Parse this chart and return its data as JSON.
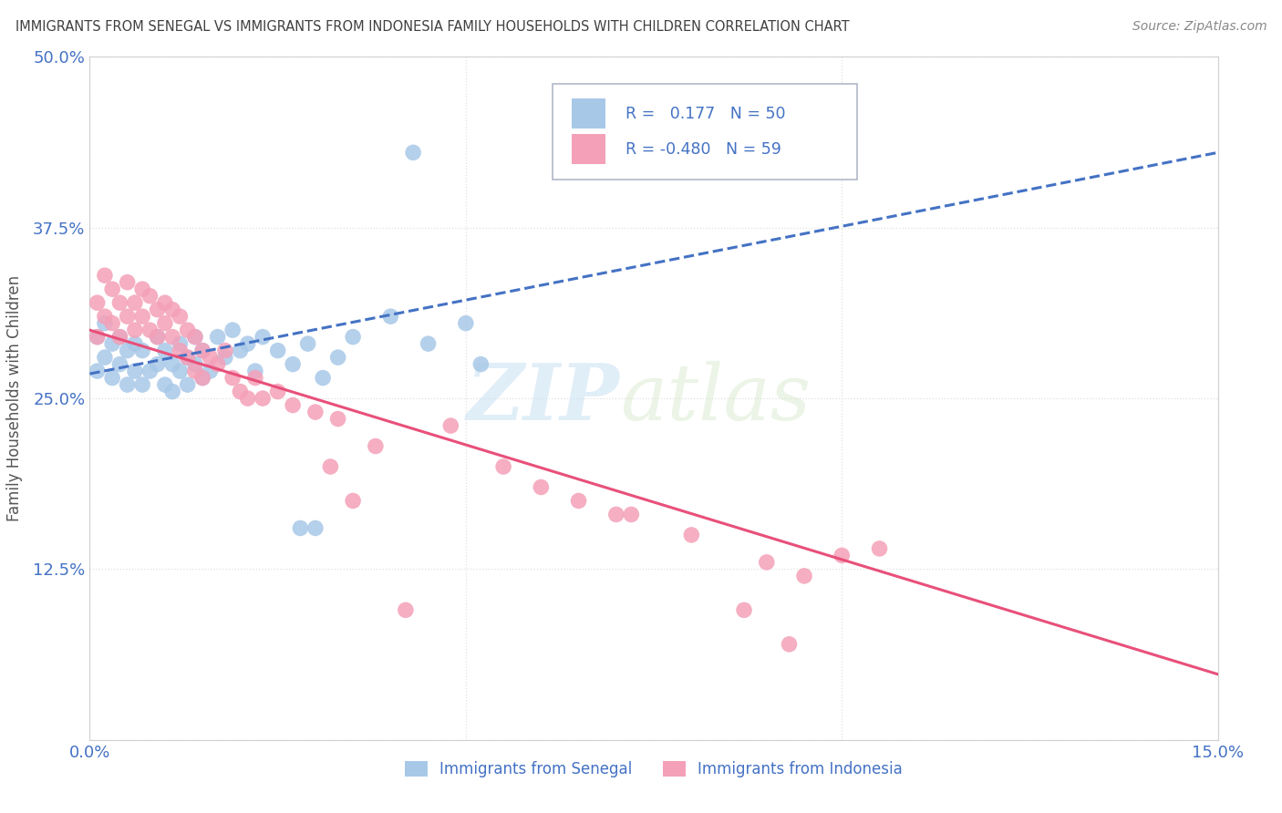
{
  "title": "IMMIGRANTS FROM SENEGAL VS IMMIGRANTS FROM INDONESIA FAMILY HOUSEHOLDS WITH CHILDREN CORRELATION CHART",
  "source": "Source: ZipAtlas.com",
  "ylabel": "Family Households with Children",
  "xlim": [
    0.0,
    0.15
  ],
  "ylim": [
    0.0,
    0.5
  ],
  "legend_labels": [
    "Immigrants from Senegal",
    "Immigrants from Indonesia"
  ],
  "r_senegal": 0.177,
  "n_senegal": 50,
  "r_indonesia": -0.48,
  "n_indonesia": 59,
  "color_senegal": "#a8c8e8",
  "color_indonesia": "#f4a0b8",
  "line_color_senegal": "#4472c4",
  "line_color_indonesia": "#e8507a",
  "legend_text_color": "#4472c4",
  "title_color": "#404040",
  "grid_color": "#e0e0e0",
  "watermark_zip": "ZIP",
  "watermark_atlas": "atlas",
  "senegal_x": [
    0.001,
    0.001,
    0.002,
    0.002,
    0.003,
    0.003,
    0.004,
    0.004,
    0.005,
    0.005,
    0.006,
    0.006,
    0.007,
    0.007,
    0.008,
    0.009,
    0.009,
    0.01,
    0.01,
    0.011,
    0.011,
    0.012,
    0.012,
    0.013,
    0.013,
    0.014,
    0.014,
    0.015,
    0.015,
    0.016,
    0.017,
    0.018,
    0.019,
    0.02,
    0.021,
    0.022,
    0.023,
    0.025,
    0.027,
    0.029,
    0.031,
    0.033,
    0.035,
    0.04,
    0.043,
    0.045,
    0.05,
    0.052,
    0.03,
    0.028
  ],
  "senegal_y": [
    0.295,
    0.27,
    0.305,
    0.28,
    0.29,
    0.265,
    0.295,
    0.275,
    0.285,
    0.26,
    0.29,
    0.27,
    0.285,
    0.26,
    0.27,
    0.295,
    0.275,
    0.285,
    0.26,
    0.275,
    0.255,
    0.27,
    0.29,
    0.28,
    0.26,
    0.275,
    0.295,
    0.265,
    0.285,
    0.27,
    0.295,
    0.28,
    0.3,
    0.285,
    0.29,
    0.27,
    0.295,
    0.285,
    0.275,
    0.29,
    0.265,
    0.28,
    0.295,
    0.31,
    0.43,
    0.29,
    0.305,
    0.275,
    0.155,
    0.155
  ],
  "indonesia_x": [
    0.001,
    0.001,
    0.002,
    0.002,
    0.003,
    0.003,
    0.004,
    0.004,
    0.005,
    0.005,
    0.006,
    0.006,
    0.007,
    0.007,
    0.008,
    0.008,
    0.009,
    0.009,
    0.01,
    0.01,
    0.011,
    0.011,
    0.012,
    0.012,
    0.013,
    0.013,
    0.014,
    0.014,
    0.015,
    0.015,
    0.016,
    0.017,
    0.018,
    0.019,
    0.02,
    0.021,
    0.022,
    0.023,
    0.025,
    0.027,
    0.03,
    0.033,
    0.038,
    0.042,
    0.048,
    0.055,
    0.06,
    0.065,
    0.072,
    0.08,
    0.09,
    0.095,
    0.1,
    0.105,
    0.087,
    0.093,
    0.032,
    0.035,
    0.07
  ],
  "indonesia_y": [
    0.32,
    0.295,
    0.34,
    0.31,
    0.33,
    0.305,
    0.32,
    0.295,
    0.335,
    0.31,
    0.32,
    0.3,
    0.33,
    0.31,
    0.325,
    0.3,
    0.315,
    0.295,
    0.32,
    0.305,
    0.315,
    0.295,
    0.31,
    0.285,
    0.3,
    0.28,
    0.295,
    0.27,
    0.285,
    0.265,
    0.28,
    0.275,
    0.285,
    0.265,
    0.255,
    0.25,
    0.265,
    0.25,
    0.255,
    0.245,
    0.24,
    0.235,
    0.215,
    0.095,
    0.23,
    0.2,
    0.185,
    0.175,
    0.165,
    0.15,
    0.13,
    0.12,
    0.135,
    0.14,
    0.095,
    0.07,
    0.2,
    0.175,
    0.165
  ],
  "line_sen_x0": 0.0,
  "line_sen_y0": 0.268,
  "line_sen_x1": 0.15,
  "line_sen_y1": 0.43,
  "line_ind_x0": 0.0,
  "line_ind_y0": 0.3,
  "line_ind_x1": 0.15,
  "line_ind_y1": 0.048
}
